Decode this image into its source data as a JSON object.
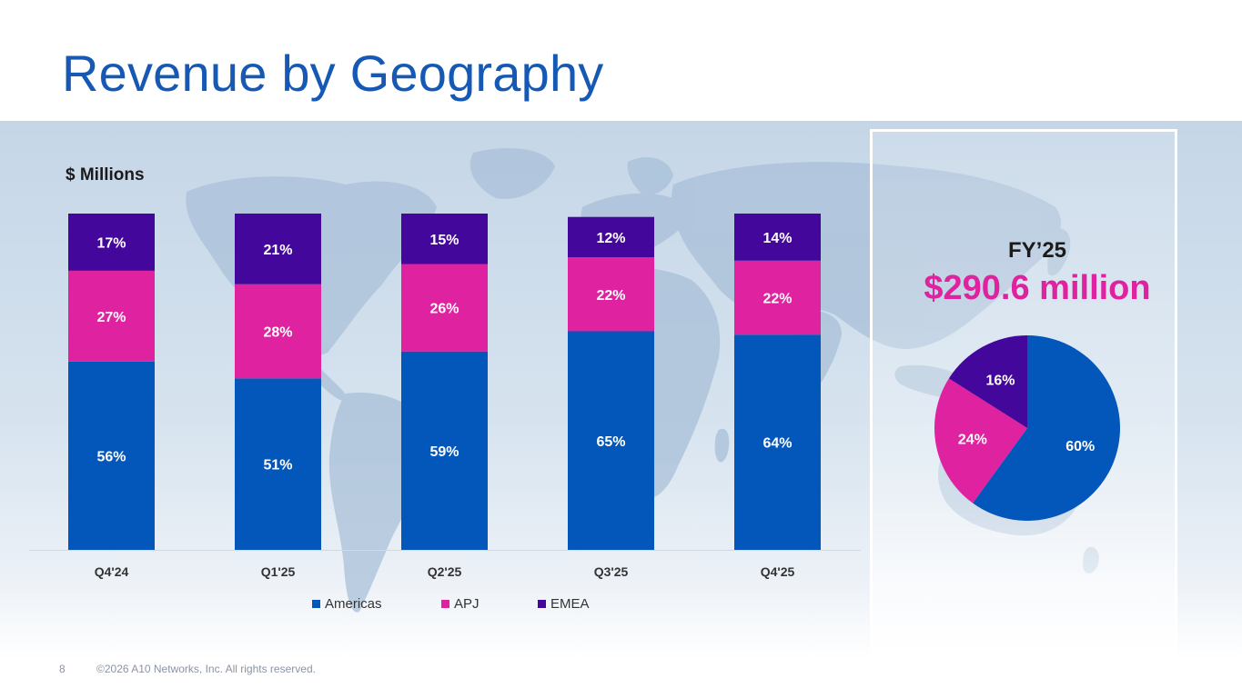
{
  "slide": {
    "title": "Revenue by Geography",
    "page_number": "8",
    "copyright": "©2026 A10 Networks, Inc. All rights reserved."
  },
  "colors": {
    "title": "#1659b5",
    "americas": "#0457ba",
    "apj": "#df22a0",
    "emea": "#44079c",
    "highlight": "#df22a0"
  },
  "fy_summary": {
    "label": "FY’25",
    "total": "$290.6 million"
  },
  "chart_data": [
    {
      "type": "bar",
      "stacked": true,
      "ylabel": "$ Millions",
      "categories": [
        "Q4'24",
        "Q1'25",
        "Q2'25",
        "Q3'25",
        "Q4'25"
      ],
      "series": [
        {
          "name": "Americas",
          "color": "#0457ba",
          "values": [
            56,
            51,
            59,
            65,
            64
          ]
        },
        {
          "name": "APJ",
          "color": "#df22a0",
          "values": [
            27,
            28,
            26,
            22,
            22
          ]
        },
        {
          "name": "EMEA",
          "color": "#44079c",
          "values": [
            17,
            21,
            15,
            12,
            14
          ]
        }
      ],
      "value_suffix": "%",
      "ylim": [
        0,
        100
      ],
      "legend": "bottom",
      "grid": false
    },
    {
      "type": "pie",
      "labels": [
        "Americas",
        "APJ",
        "EMEA"
      ],
      "values": [
        60,
        24,
        16
      ],
      "value_suffix": "%",
      "colors": [
        "#0457ba",
        "#df22a0",
        "#44079c"
      ]
    }
  ]
}
